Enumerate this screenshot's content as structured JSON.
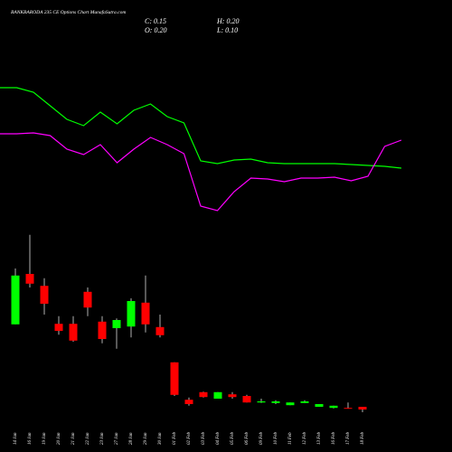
{
  "chart_data": {
    "type": "candlestick",
    "title": "BANKBARODA 235 CE Options Chart MunafaSutra.com",
    "header_labels": [
      "C: 0.15",
      "H: 0.20",
      "O: 0.20",
      "L: 0.10"
    ],
    "categories": [
      "14 Jan",
      "16 Jan",
      "19 Jan",
      "20 Jan",
      "21 Jan",
      "22 Jan",
      "23 Jan",
      "27 Jan",
      "28 Jan",
      "29 Jan",
      "30 Jan",
      "01 Feb",
      "02 Feb",
      "03 Feb",
      "04 Feb",
      "05 Feb",
      "06 Feb",
      "09 Feb",
      "10 Feb",
      "11 Feb",
      "12 Feb",
      "13 Feb",
      "16 Feb",
      "17 Feb",
      "18 Feb"
    ],
    "open": [
      1.72,
      2.65,
      2.43,
      1.73,
      1.73,
      2.32,
      1.77,
      1.65,
      1.68,
      2.12,
      1.67,
      1.02,
      0.33,
      0.47,
      0.35,
      0.43,
      0.4,
      0.28,
      0.27,
      0.23,
      0.27,
      0.2,
      0.18,
      0.18,
      0.2
    ],
    "high": [
      2.75,
      3.37,
      2.57,
      1.87,
      1.87,
      2.4,
      1.87,
      1.83,
      2.2,
      2.62,
      1.9,
      1.02,
      0.37,
      0.48,
      0.47,
      0.47,
      0.42,
      0.35,
      0.32,
      0.28,
      0.32,
      0.25,
      0.22,
      0.28,
      0.2
    ],
    "low": [
      1.72,
      2.4,
      1.9,
      1.53,
      1.4,
      1.87,
      1.37,
      1.27,
      1.48,
      1.57,
      1.48,
      0.4,
      0.22,
      0.37,
      0.35,
      0.35,
      0.28,
      0.27,
      0.25,
      0.23,
      0.27,
      0.2,
      0.17,
      0.17,
      0.1
    ],
    "close": [
      2.62,
      2.47,
      2.1,
      1.6,
      1.42,
      2.03,
      1.45,
      1.8,
      2.15,
      1.72,
      1.52,
      0.42,
      0.25,
      0.38,
      0.47,
      0.38,
      0.28,
      0.3,
      0.3,
      0.28,
      0.3,
      0.25,
      0.22,
      0.17,
      0.15
    ],
    "up_color": "#00ff00",
    "down_color": "#ff0000",
    "ylim": [
      0,
      3.6
    ],
    "lines": {
      "ylim": [
        0,
        100
      ],
      "series": [
        {
          "color": "#00ff00",
          "values": [
            76.5,
            76.5,
            74,
            66.5,
            59,
            55.5,
            63,
            56.5,
            64,
            67.5,
            60.5,
            57,
            36,
            34.5,
            36.5,
            37,
            35,
            34.5,
            34.5,
            34.5,
            34.5,
            34,
            33.5,
            33,
            32
          ]
        },
        {
          "color": "#ff00ff",
          "values": [
            51,
            51,
            51.5,
            50,
            42.5,
            39.5,
            45,
            35,
            42.5,
            49,
            45,
            40,
            11,
            8.5,
            19,
            26.5,
            26,
            24.5,
            26.5,
            26.5,
            27,
            25,
            27.5,
            44,
            47.5
          ]
        }
      ]
    }
  }
}
